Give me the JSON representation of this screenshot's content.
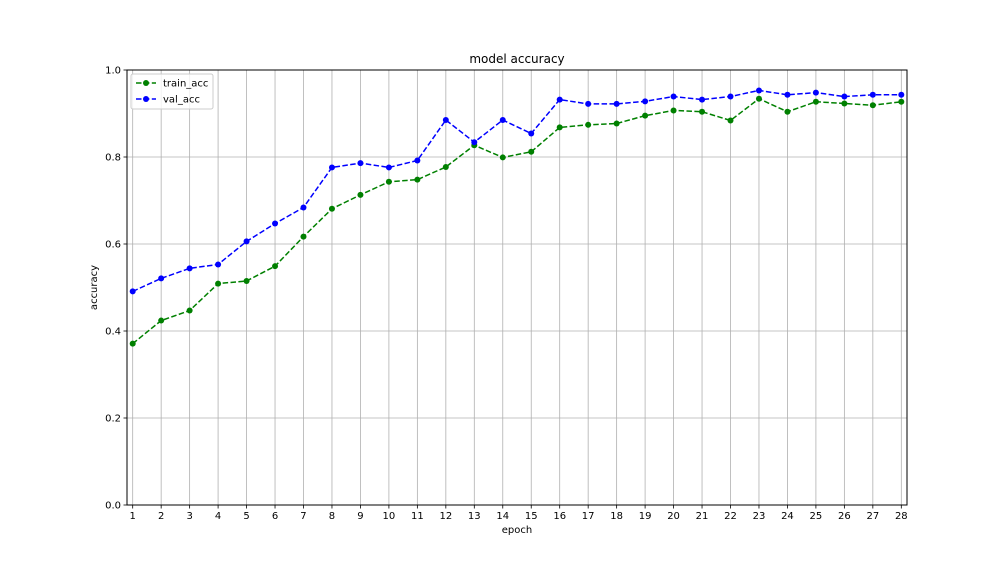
{
  "chart_data": {
    "type": "line",
    "title": "model accuracy",
    "xlabel": "epoch",
    "ylabel": "accuracy",
    "xlim": [
      0.8,
      28.2
    ],
    "ylim": [
      0.0,
      1.0
    ],
    "grid": true,
    "legend_position": "top-left",
    "x": [
      1,
      2,
      3,
      4,
      5,
      6,
      7,
      8,
      9,
      10,
      11,
      12,
      13,
      14,
      15,
      16,
      17,
      18,
      19,
      20,
      21,
      22,
      23,
      24,
      25,
      26,
      27,
      28
    ],
    "yticks": [
      "0.0",
      "0.2",
      "0.4",
      "0.6",
      "0.8",
      "1.0"
    ],
    "series": [
      {
        "name": "train_acc",
        "color": "#008000",
        "linestyle": "dashed",
        "marker": "circle",
        "values": [
          0.371,
          0.424,
          0.447,
          0.509,
          0.515,
          0.549,
          0.617,
          0.681,
          0.713,
          0.743,
          0.748,
          0.777,
          0.827,
          0.799,
          0.812,
          0.868,
          0.874,
          0.877,
          0.895,
          0.907,
          0.904,
          0.884,
          0.934,
          0.904,
          0.927,
          0.923,
          0.919,
          0.927
        ]
      },
      {
        "name": "val_acc",
        "color": "#0000ff",
        "linestyle": "dashed",
        "marker": "circle",
        "values": [
          0.491,
          0.521,
          0.544,
          0.553,
          0.606,
          0.647,
          0.684,
          0.776,
          0.786,
          0.776,
          0.792,
          0.885,
          0.834,
          0.885,
          0.854,
          0.932,
          0.922,
          0.922,
          0.928,
          0.939,
          0.932,
          0.939,
          0.953,
          0.943,
          0.948,
          0.939,
          0.943,
          0.943
        ]
      }
    ]
  }
}
